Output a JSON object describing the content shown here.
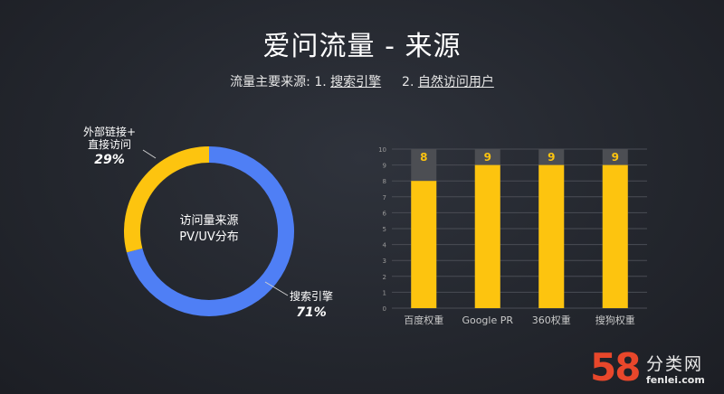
{
  "title": "爱问流量 - 来源",
  "subtitle": {
    "prefix": "流量主要来源:",
    "item1_num": "1.",
    "item1": "搜索引擎",
    "item2_num": "2.",
    "item2": "自然访问用户"
  },
  "colors": {
    "blue": "#4f7ff5",
    "yellow": "#fdc40f",
    "bar_bg": "#4c4e53",
    "grid": "#4a4d55",
    "label": "#c9c9c9"
  },
  "chart_data": [
    {
      "type": "pie",
      "center_label_line1": "访问量来源",
      "center_label_line2": "PV/UV分布",
      "slices": [
        {
          "name": "搜索引擎",
          "value": 71,
          "value_label": "71%",
          "color": "#4f7ff5"
        },
        {
          "name_line1": "外部链接+",
          "name_line2": "直接访问",
          "value": 29,
          "value_label": "29%",
          "color": "#fdc40f"
        }
      ]
    },
    {
      "type": "bar",
      "categories": [
        "百度权重",
        "Google PR",
        "360权重",
        "搜狗权重"
      ],
      "values": [
        8,
        9,
        9,
        9
      ],
      "max_value": 10,
      "ylim": [
        0,
        10
      ],
      "yticks": [
        "0",
        "1",
        "2",
        "3",
        "4",
        "5",
        "6",
        "7",
        "8",
        "9",
        "10"
      ],
      "grid": true
    }
  ],
  "watermark": {
    "num": "58",
    "cn": "分类网",
    "url": "fenlei.com"
  }
}
